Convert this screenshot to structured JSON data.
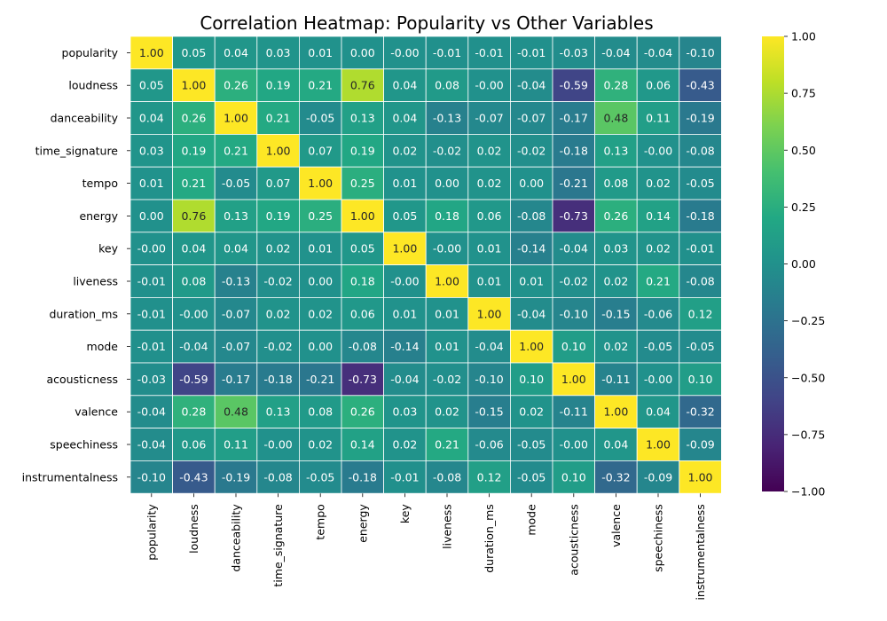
{
  "chart_data": {
    "type": "heatmap",
    "title": "Correlation Heatmap: Popularity vs Other Variables",
    "xlabel": "",
    "ylabel": "",
    "rows": [
      "popularity",
      "loudness",
      "danceability",
      "time_signature",
      "tempo",
      "energy",
      "key",
      "liveness",
      "duration_ms",
      "mode",
      "acousticness",
      "valence",
      "speechiness",
      "instrumentalness"
    ],
    "columns": [
      "popularity",
      "loudness",
      "danceability",
      "time_signature",
      "tempo",
      "energy",
      "key",
      "liveness",
      "duration_ms",
      "mode",
      "acousticness",
      "valence",
      "speechiness",
      "instrumentalness"
    ],
    "values": [
      [
        "1.00",
        "0.05",
        "0.04",
        "0.03",
        "0.01",
        "0.00",
        "-0.00",
        "-0.01",
        "-0.01",
        "-0.01",
        "-0.03",
        "-0.04",
        "-0.04",
        "-0.10"
      ],
      [
        "0.05",
        "1.00",
        "0.26",
        "0.19",
        "0.21",
        "0.76",
        "0.04",
        "0.08",
        "-0.00",
        "-0.04",
        "-0.59",
        "0.28",
        "0.06",
        "-0.43"
      ],
      [
        "0.04",
        "0.26",
        "1.00",
        "0.21",
        "-0.05",
        "0.13",
        "0.04",
        "-0.13",
        "-0.07",
        "-0.07",
        "-0.17",
        "0.48",
        "0.11",
        "-0.19"
      ],
      [
        "0.03",
        "0.19",
        "0.21",
        "1.00",
        "0.07",
        "0.19",
        "0.02",
        "-0.02",
        "0.02",
        "-0.02",
        "-0.18",
        "0.13",
        "-0.00",
        "-0.08"
      ],
      [
        "0.01",
        "0.21",
        "-0.05",
        "0.07",
        "1.00",
        "0.25",
        "0.01",
        "0.00",
        "0.02",
        "0.00",
        "-0.21",
        "0.08",
        "0.02",
        "-0.05"
      ],
      [
        "0.00",
        "0.76",
        "0.13",
        "0.19",
        "0.25",
        "1.00",
        "0.05",
        "0.18",
        "0.06",
        "-0.08",
        "-0.73",
        "0.26",
        "0.14",
        "-0.18"
      ],
      [
        "-0.00",
        "0.04",
        "0.04",
        "0.02",
        "0.01",
        "0.05",
        "1.00",
        "-0.00",
        "0.01",
        "-0.14",
        "-0.04",
        "0.03",
        "0.02",
        "-0.01"
      ],
      [
        "-0.01",
        "0.08",
        "-0.13",
        "-0.02",
        "0.00",
        "0.18",
        "-0.00",
        "1.00",
        "0.01",
        "0.01",
        "-0.02",
        "0.02",
        "0.21",
        "-0.08"
      ],
      [
        "-0.01",
        "-0.00",
        "-0.07",
        "0.02",
        "0.02",
        "0.06",
        "0.01",
        "0.01",
        "1.00",
        "-0.04",
        "-0.10",
        "-0.15",
        "-0.06",
        "0.12"
      ],
      [
        "-0.01",
        "-0.04",
        "-0.07",
        "-0.02",
        "0.00",
        "-0.08",
        "-0.14",
        "0.01",
        "-0.04",
        "1.00",
        "0.10",
        "0.02",
        "-0.05",
        "-0.05"
      ],
      [
        "-0.03",
        "-0.59",
        "-0.17",
        "-0.18",
        "-0.21",
        "-0.73",
        "-0.04",
        "-0.02",
        "-0.10",
        "0.10",
        "1.00",
        "-0.11",
        "-0.00",
        "0.10"
      ],
      [
        "-0.04",
        "0.28",
        "0.48",
        "0.13",
        "0.08",
        "0.26",
        "0.03",
        "0.02",
        "-0.15",
        "0.02",
        "-0.11",
        "1.00",
        "0.04",
        "-0.32"
      ],
      [
        "-0.04",
        "0.06",
        "0.11",
        "-0.00",
        "0.02",
        "0.14",
        "0.02",
        "0.21",
        "-0.06",
        "-0.05",
        "-0.00",
        "0.04",
        "1.00",
        "-0.09"
      ],
      [
        "-0.10",
        "-0.43",
        "-0.19",
        "-0.08",
        "-0.05",
        "-0.18",
        "-0.01",
        "-0.08",
        "0.12",
        "-0.05",
        "0.10",
        "-0.32",
        "-0.09",
        "1.00"
      ]
    ],
    "colormap": "viridis",
    "vmin": -1.0,
    "vmax": 1.0,
    "colorbar_ticks": [
      "1.00",
      "0.75",
      "0.50",
      "0.25",
      "0.00",
      "−0.25",
      "−0.50",
      "−0.75",
      "−1.00"
    ],
    "colorbar_tick_values": [
      1.0,
      0.75,
      0.5,
      0.25,
      0.0,
      -0.25,
      -0.5,
      -0.75,
      -1.0
    ],
    "grid": true,
    "grid_color": "#ffffff"
  }
}
